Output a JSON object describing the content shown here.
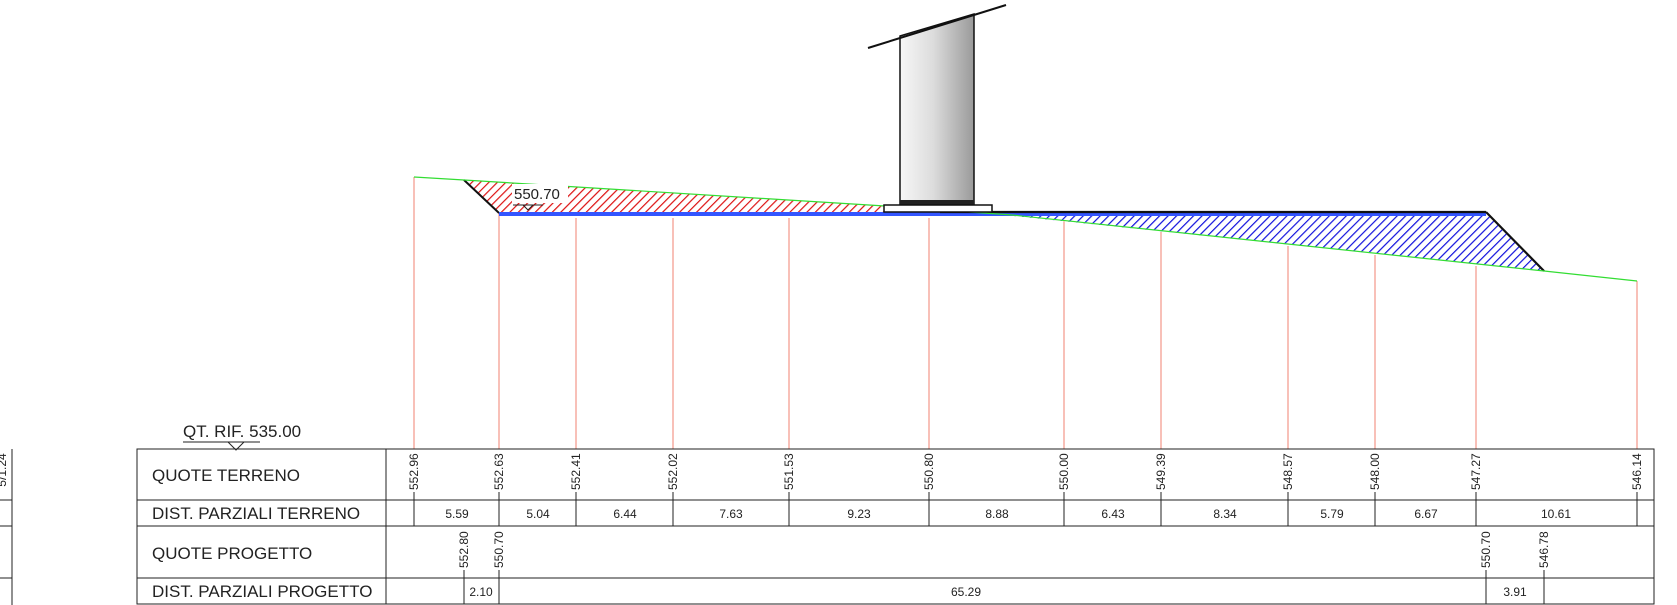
{
  "reference_level": "QT. RIF. 535.00",
  "platform_level": "550.70",
  "left_edge_fragment": "5/1.24",
  "rows": {
    "terrain_heights": "QUOTE TERRENO",
    "terrain_distances": "DIST. PARZIALI TERRENO",
    "project_heights": "QUOTE PROGETTO",
    "project_distances": "DIST. PARZIALI PROGETTO"
  },
  "terrain": {
    "elevations": [
      "552.96",
      "552.63",
      "552.41",
      "552.02",
      "551.53",
      "550.80",
      "550.00",
      "549.39",
      "548.57",
      "548.00",
      "547.27",
      "546.14"
    ],
    "partial_distances": [
      "5.59",
      "5.04",
      "6.44",
      "7.63",
      "9.23",
      "8.88",
      "6.43",
      "8.34",
      "5.79",
      "6.67",
      "10.61"
    ]
  },
  "project": {
    "elevations": [
      "552.80",
      "550.70",
      "550.70",
      "546.78"
    ],
    "partial_distances": [
      "2.10",
      "65.29",
      "3.91"
    ]
  },
  "colors": {
    "ground_line": "#33dd33",
    "cut_hatch": "#dd1111",
    "fill_hatch": "#1111dd",
    "station_lines": "#f08070",
    "table_lines": "#222222"
  },
  "icons": {
    "reference_marker": "triangle-down-icon",
    "wind_turbine": "turbine-tower"
  }
}
